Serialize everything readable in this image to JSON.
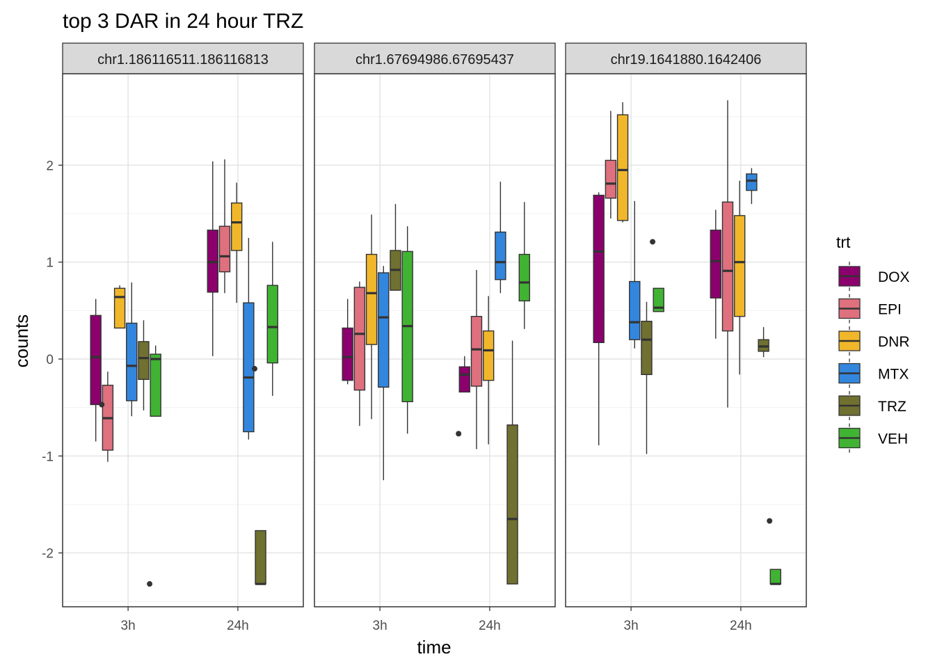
{
  "chart_data": {
    "type": "boxplot",
    "title": "top 3 DAR in 24 hour TRZ",
    "xlabel": "time",
    "ylabel": "counts",
    "ylim": [
      -2.55,
      2.9
    ],
    "yticks": [
      -2,
      -1,
      0,
      1,
      2
    ],
    "categories": [
      "3h",
      "24h"
    ],
    "legend": {
      "title": "trt",
      "position": "right",
      "items": [
        {
          "name": "DOX",
          "color": "#8B006D"
        },
        {
          "name": "EPI",
          "color": "#DF707E"
        },
        {
          "name": "DNR",
          "color": "#F1B72B"
        },
        {
          "name": "MTX",
          "color": "#3386DD"
        },
        {
          "name": "TRZ",
          "color": "#707031"
        },
        {
          "name": "VEH",
          "color": "#41B333"
        }
      ]
    },
    "panels": [
      {
        "strip": "chr1.186116511.186116813",
        "groups": {
          "3h": [
            {
              "trt": "DOX",
              "min": -0.85,
              "q1": -0.47,
              "median": 0.02,
              "q3": 0.45,
              "max": 0.62,
              "outliers": []
            },
            {
              "trt": "EPI",
              "min": -1.06,
              "q1": -0.94,
              "median": -0.61,
              "q3": -0.27,
              "max": -0.13,
              "outliers": [
                -0.47
              ]
            },
            {
              "trt": "DNR",
              "min": 0.32,
              "q1": 0.32,
              "median": 0.64,
              "q3": 0.73,
              "max": 0.76,
              "outliers": []
            },
            {
              "trt": "MTX",
              "min": -0.59,
              "q1": -0.43,
              "median": -0.07,
              "q3": 0.37,
              "max": 0.79,
              "outliers": []
            },
            {
              "trt": "TRZ",
              "min": -0.53,
              "q1": -0.21,
              "median": 0.01,
              "q3": 0.18,
              "max": 0.4,
              "outliers": []
            },
            {
              "trt": "VEH",
              "min": -0.59,
              "q1": -0.59,
              "median": 0.0,
              "q3": 0.05,
              "max": 0.14,
              "outliers": [
                -2.32
              ]
            }
          ],
          "24h": [
            {
              "trt": "DOX",
              "min": 0.03,
              "q1": 0.69,
              "median": 1.0,
              "q3": 1.33,
              "max": 2.04,
              "outliers": []
            },
            {
              "trt": "EPI",
              "min": 0.68,
              "q1": 0.9,
              "median": 1.06,
              "q3": 1.37,
              "max": 2.06,
              "outliers": []
            },
            {
              "trt": "DNR",
              "min": 0.58,
              "q1": 1.12,
              "median": 1.41,
              "q3": 1.61,
              "max": 1.82,
              "outliers": []
            },
            {
              "trt": "MTX",
              "min": -0.83,
              "q1": -0.75,
              "median": -0.19,
              "q3": 0.58,
              "max": 1.25,
              "outliers": []
            },
            {
              "trt": "TRZ",
              "min": -2.32,
              "q1": -2.32,
              "median": -2.32,
              "q3": -1.77,
              "max": -1.77,
              "outliers": [
                -0.1
              ]
            },
            {
              "trt": "VEH",
              "min": -0.38,
              "q1": -0.04,
              "median": 0.33,
              "q3": 0.76,
              "max": 1.21,
              "outliers": []
            }
          ]
        }
      },
      {
        "strip": "chr1.67694986.67695437",
        "groups": {
          "3h": [
            {
              "trt": "DOX",
              "min": -0.26,
              "q1": -0.22,
              "median": 0.02,
              "q3": 0.32,
              "max": 0.62,
              "outliers": []
            },
            {
              "trt": "EPI",
              "min": -0.69,
              "q1": -0.32,
              "median": 0.26,
              "q3": 0.74,
              "max": 0.8,
              "outliers": []
            },
            {
              "trt": "DNR",
              "min": -0.62,
              "q1": 0.15,
              "median": 0.68,
              "q3": 1.08,
              "max": 1.49,
              "outliers": []
            },
            {
              "trt": "MTX",
              "min": -1.25,
              "q1": -0.29,
              "median": 0.43,
              "q3": 0.89,
              "max": 0.96,
              "outliers": []
            },
            {
              "trt": "TRZ",
              "min": 0.71,
              "q1": 0.71,
              "median": 0.92,
              "q3": 1.12,
              "max": 1.6,
              "outliers": []
            },
            {
              "trt": "VEH",
              "min": -0.77,
              "q1": -0.44,
              "median": 0.34,
              "q3": 1.11,
              "max": 1.37,
              "outliers": []
            }
          ],
          "24h": [
            {
              "trt": "DOX",
              "min": -0.34,
              "q1": -0.34,
              "median": -0.16,
              "q3": -0.08,
              "max": 0.03,
              "outliers": [
                -0.77
              ]
            },
            {
              "trt": "EPI",
              "min": -0.93,
              "q1": -0.28,
              "median": 0.1,
              "q3": 0.44,
              "max": 0.92,
              "outliers": []
            },
            {
              "trt": "DNR",
              "min": -0.88,
              "q1": -0.22,
              "median": 0.09,
              "q3": 0.29,
              "max": 0.65,
              "outliers": []
            },
            {
              "trt": "MTX",
              "min": 0.68,
              "q1": 0.82,
              "median": 1.0,
              "q3": 1.31,
              "max": 1.83,
              "outliers": []
            },
            {
              "trt": "TRZ",
              "min": -2.32,
              "q1": -2.32,
              "median": -1.65,
              "q3": -0.68,
              "max": 0.19,
              "outliers": []
            },
            {
              "trt": "VEH",
              "min": 0.31,
              "q1": 0.6,
              "median": 0.79,
              "q3": 1.08,
              "max": 1.62,
              "outliers": []
            }
          ]
        }
      },
      {
        "strip": "chr19.1641880.1642406",
        "groups": {
          "3h": [
            {
              "trt": "DOX",
              "min": -0.89,
              "q1": 0.17,
              "median": 1.11,
              "q3": 1.69,
              "max": 1.72,
              "outliers": []
            },
            {
              "trt": "EPI",
              "min": 1.45,
              "q1": 1.66,
              "median": 1.81,
              "q3": 2.05,
              "max": 2.56,
              "outliers": []
            },
            {
              "trt": "DNR",
              "min": 1.41,
              "q1": 1.43,
              "median": 1.95,
              "q3": 2.52,
              "max": 2.65,
              "outliers": []
            },
            {
              "trt": "MTX",
              "min": 0.11,
              "q1": 0.2,
              "median": 0.38,
              "q3": 0.8,
              "max": 1.63,
              "outliers": []
            },
            {
              "trt": "TRZ",
              "min": -0.98,
              "q1": -0.16,
              "median": 0.2,
              "q3": 0.39,
              "max": 0.59,
              "outliers": []
            },
            {
              "trt": "VEH",
              "min": 0.49,
              "q1": 0.49,
              "median": 0.53,
              "q3": 0.73,
              "max": 0.73,
              "outliers": [
                1.21
              ]
            }
          ],
          "24h": [
            {
              "trt": "DOX",
              "min": 0.21,
              "q1": 0.63,
              "median": 1.01,
              "q3": 1.33,
              "max": 1.54,
              "outliers": []
            },
            {
              "trt": "EPI",
              "min": -0.5,
              "q1": 0.29,
              "median": 0.91,
              "q3": 1.62,
              "max": 2.67,
              "outliers": []
            },
            {
              "trt": "DNR",
              "min": -0.16,
              "q1": 0.44,
              "median": 1.0,
              "q3": 1.48,
              "max": 1.84,
              "outliers": []
            },
            {
              "trt": "MTX",
              "min": 1.6,
              "q1": 1.74,
              "median": 1.84,
              "q3": 1.91,
              "max": 1.97,
              "outliers": []
            },
            {
              "trt": "TRZ",
              "min": 0.02,
              "q1": 0.08,
              "median": 0.13,
              "q3": 0.2,
              "max": 0.33,
              "outliers": []
            },
            {
              "trt": "VEH",
              "min": -2.32,
              "q1": -2.32,
              "median": -2.32,
              "q3": -2.17,
              "max": -2.17,
              "outliers": [
                -1.67
              ]
            }
          ]
        }
      }
    ]
  }
}
